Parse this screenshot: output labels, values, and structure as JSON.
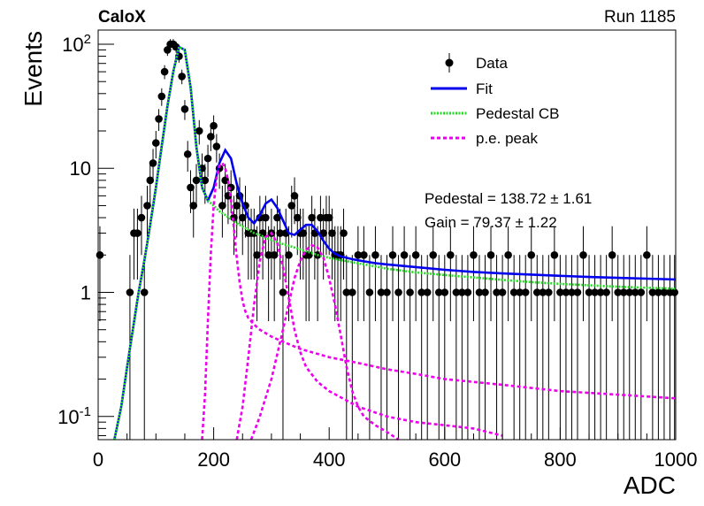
{
  "header": {
    "left": "CaloX",
    "right": "Run 1185"
  },
  "chart_data": {
    "type": "scatter",
    "xlabel": "ADC",
    "ylabel": "Events",
    "xlim": [
      0,
      1000
    ],
    "ylim": [
      0.065,
      130
    ],
    "log_y": true,
    "grid": false,
    "x_ticks": [
      0,
      200,
      400,
      600,
      800,
      1000
    ],
    "x_tick_labels": [
      "0",
      "200",
      "400",
      "600",
      "800",
      "1000"
    ],
    "y_ticks": [
      0.1,
      1,
      10,
      100
    ],
    "y_tick_labels": [
      "10^-1",
      "1",
      "10",
      "10^2"
    ],
    "legend": {
      "position": "top-right",
      "entries": [
        {
          "label": "Data",
          "style": "marker",
          "color": "#000000"
        },
        {
          "label": "Fit",
          "style": "solid",
          "color": "#0000ee"
        },
        {
          "label": "Pedestal CB",
          "style": "dotted",
          "color": "#22dd22"
        },
        {
          "label": "p.e. peak",
          "style": "dashed",
          "color": "#ee00ee"
        }
      ]
    },
    "annotations": [
      {
        "text": "Pedestal = 138.72 ± 1.61"
      },
      {
        "text": "Gain = 79.37 ± 1.22"
      }
    ],
    "series": [
      {
        "name": "Data",
        "kind": "points",
        "color": "#000000",
        "x": [
          3,
          55,
          62,
          68,
          75,
          80,
          85,
          90,
          95,
          100,
          105,
          110,
          115,
          120,
          125,
          130,
          135,
          140,
          145,
          150,
          155,
          160,
          165,
          170,
          175,
          180,
          185,
          190,
          195,
          200,
          205,
          210,
          215,
          220,
          225,
          230,
          235,
          240,
          245,
          250,
          255,
          260,
          265,
          270,
          275,
          280,
          285,
          290,
          295,
          300,
          305,
          310,
          315,
          320,
          325,
          330,
          335,
          340,
          345,
          350,
          355,
          360,
          365,
          370,
          375,
          380,
          385,
          390,
          395,
          400,
          405,
          410,
          415,
          420,
          425,
          430,
          440,
          450,
          460,
          470,
          480,
          490,
          500,
          510,
          520,
          530,
          540,
          550,
          560,
          570,
          580,
          590,
          600,
          610,
          620,
          630,
          640,
          650,
          660,
          670,
          680,
          690,
          700,
          710,
          720,
          730,
          740,
          750,
          760,
          770,
          780,
          790,
          800,
          810,
          820,
          830,
          840,
          850,
          860,
          870,
          880,
          890,
          900,
          910,
          920,
          930,
          940,
          950,
          960,
          970,
          980,
          990,
          998
        ],
        "y": [
          2,
          1,
          3,
          3,
          4,
          1,
          5,
          8,
          11,
          16,
          25,
          38,
          60,
          90,
          100,
          100,
          95,
          80,
          55,
          30,
          13,
          7,
          5,
          8,
          20,
          10,
          8,
          12,
          18,
          22,
          15,
          10,
          5,
          8,
          6,
          7,
          4,
          5,
          6,
          4,
          5,
          3,
          3,
          3,
          2,
          4,
          3,
          4,
          2,
          3,
          2,
          4,
          3,
          1,
          3,
          2,
          5,
          6,
          4,
          3,
          3,
          2,
          2,
          4,
          3,
          2,
          4,
          3,
          4,
          4,
          3,
          2,
          2,
          2,
          3,
          1,
          1,
          2,
          2,
          1,
          2,
          1,
          1,
          2,
          1,
          2,
          1,
          2,
          1,
          1,
          2,
          1,
          1,
          2,
          1,
          1,
          1,
          2,
          1,
          1,
          2,
          1,
          1,
          2,
          1,
          1,
          1,
          2,
          1,
          1,
          1,
          2,
          1,
          1,
          1,
          1,
          2,
          1,
          1,
          1,
          1,
          2,
          1,
          1,
          1,
          1,
          1,
          2,
          1,
          1,
          1,
          1,
          1
        ]
      },
      {
        "name": "Fit",
        "kind": "line",
        "color": "#0000ee",
        "x": [
          28,
          40,
          50,
          60,
          70,
          80,
          90,
          100,
          110,
          120,
          130,
          140,
          150,
          160,
          170,
          180,
          190,
          200,
          210,
          220,
          230,
          240,
          250,
          260,
          270,
          280,
          290,
          300,
          310,
          320,
          330,
          340,
          350,
          360,
          370,
          380,
          390,
          400,
          410,
          420,
          440,
          460,
          480,
          500,
          550,
          600,
          650,
          700,
          750,
          800,
          850,
          900,
          950,
          1000
        ],
        "y": [
          0.065,
          0.12,
          0.25,
          0.5,
          1.0,
          1.8,
          3.5,
          7,
          15,
          32,
          60,
          95,
          90,
          45,
          15,
          7,
          5.5,
          7,
          11,
          14,
          12,
          7.5,
          5.2,
          4,
          3.6,
          4.2,
          5.2,
          5.6,
          4.8,
          3.8,
          3.0,
          2.9,
          3.2,
          3.5,
          3.5,
          3.1,
          2.6,
          2.25,
          2.05,
          1.95,
          1.85,
          1.78,
          1.72,
          1.68,
          1.6,
          1.52,
          1.46,
          1.42,
          1.39,
          1.36,
          1.33,
          1.31,
          1.29,
          1.27
        ]
      },
      {
        "name": "Pedestal CB",
        "kind": "line",
        "color": "#22dd22",
        "x": [
          28,
          40,
          50,
          60,
          70,
          80,
          90,
          100,
          110,
          120,
          130,
          140,
          150,
          160,
          170,
          180,
          190,
          200,
          210,
          220,
          230,
          240,
          250,
          260,
          270,
          280,
          290,
          300,
          320,
          340,
          360,
          380,
          400,
          420,
          440,
          460,
          480,
          500,
          550,
          600,
          650,
          700,
          750,
          800,
          850,
          900,
          950,
          1000
        ],
        "y": [
          0.065,
          0.12,
          0.25,
          0.5,
          1.0,
          1.8,
          3.5,
          7,
          15,
          32,
          60,
          95,
          90,
          45,
          15,
          7,
          5.5,
          5,
          4.5,
          4.2,
          3.9,
          3.6,
          3.4,
          3.2,
          3.0,
          2.9,
          2.75,
          2.65,
          2.45,
          2.3,
          2.15,
          2.0,
          1.9,
          1.82,
          1.75,
          1.68,
          1.62,
          1.55,
          1.45,
          1.38,
          1.32,
          1.26,
          1.21,
          1.17,
          1.14,
          1.11,
          1.09,
          1.07
        ]
      },
      {
        "name": "p.e. peak 1",
        "kind": "line",
        "color": "#ee00ee",
        "x": [
          180,
          185,
          190,
          195,
          200,
          205,
          210,
          215,
          220,
          225,
          230,
          235,
          240,
          245,
          250,
          255,
          260,
          270,
          280,
          300,
          320,
          350,
          400,
          450,
          500,
          550,
          600,
          700,
          800,
          900,
          1000
        ],
        "y": [
          0.065,
          0.15,
          0.6,
          2.0,
          5.0,
          8.5,
          10.5,
          11.0,
          10.0,
          8.0,
          5.5,
          3.3,
          1.9,
          1.2,
          0.85,
          0.7,
          0.62,
          0.55,
          0.5,
          0.44,
          0.4,
          0.35,
          0.3,
          0.27,
          0.24,
          0.22,
          0.2,
          0.18,
          0.16,
          0.15,
          0.14
        ]
      },
      {
        "name": "p.e. peak 2",
        "kind": "line",
        "color": "#ee00ee",
        "x": [
          240,
          250,
          260,
          270,
          280,
          290,
          300,
          310,
          320,
          330,
          340,
          350,
          360,
          380,
          400,
          450,
          500,
          550,
          600,
          650,
          700
        ],
        "y": [
          0.065,
          0.12,
          0.3,
          0.8,
          1.8,
          2.8,
          3.0,
          2.5,
          1.6,
          0.9,
          0.5,
          0.33,
          0.25,
          0.19,
          0.16,
          0.12,
          0.1,
          0.09,
          0.085,
          0.08,
          0.07
        ]
      },
      {
        "name": "p.e. peak 3",
        "kind": "line",
        "color": "#ee00ee",
        "x": [
          265,
          280,
          300,
          320,
          340,
          350,
          360,
          370,
          380,
          390,
          400,
          410,
          420,
          430,
          440,
          450,
          460,
          480,
          500,
          520
        ],
        "y": [
          0.065,
          0.1,
          0.2,
          0.5,
          1.3,
          1.8,
          2.2,
          2.4,
          2.3,
          1.9,
          1.3,
          0.8,
          0.45,
          0.25,
          0.16,
          0.12,
          0.1,
          0.085,
          0.075,
          0.065
        ]
      }
    ]
  }
}
